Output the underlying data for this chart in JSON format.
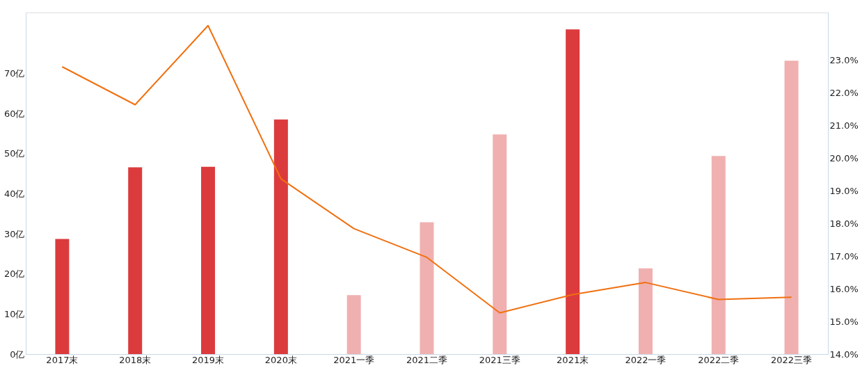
{
  "chart_data": {
    "type": "bar",
    "categories": [
      "2017末",
      "2018末",
      "2019末",
      "2020末",
      "2021一季",
      "2021二季",
      "2021三季",
      "2021末",
      "2022一季",
      "2022二季",
      "2022三季"
    ],
    "series": [
      {
        "values": [
          28.7,
          46.6,
          46.7,
          58.5,
          14.7,
          32.9,
          54.8,
          81.0,
          21.4,
          49.4,
          73.2
        ],
        "colors": [
          "#dc3b3d",
          "#dc3b3d",
          "#dc3b3d",
          "#dc3b3d",
          "#f0b0b0",
          "#f0b0b0",
          "#f0b0b0",
          "#dc3b3d",
          "#f0b0b0",
          "#f0b0b0",
          "#f0b0b0"
        ]
      },
      {
        "type": "line",
        "axis": "y2",
        "color": "#f07010",
        "values": [
          22.79,
          21.63,
          24.05,
          19.36,
          17.84,
          16.96,
          15.26,
          15.82,
          16.19,
          15.67,
          15.74
        ]
      }
    ],
    "ylim": [
      0,
      85.2
    ],
    "yticks": [
      {
        "value": 0,
        "label": "0亿"
      },
      {
        "value": 10,
        "label": "10亿"
      },
      {
        "value": 20,
        "label": "20亿"
      },
      {
        "value": 30,
        "label": "30亿"
      },
      {
        "value": 40,
        "label": "40亿"
      },
      {
        "value": 50,
        "label": "50亿"
      },
      {
        "value": 60,
        "label": "60亿"
      },
      {
        "value": 70,
        "label": "70亿"
      }
    ],
    "y2lim": [
      14,
      24.45
    ],
    "y2ticks": [
      {
        "value": 14,
        "label": "14.0%"
      },
      {
        "value": 15,
        "label": "15.0%"
      },
      {
        "value": 16,
        "label": "16.0%"
      },
      {
        "value": 17,
        "label": "17.0%"
      },
      {
        "value": 18,
        "label": "18.0%"
      },
      {
        "value": 19,
        "label": "19.0%"
      },
      {
        "value": 20,
        "label": "20.0%"
      },
      {
        "value": 21,
        "label": "21.0%"
      },
      {
        "value": 22,
        "label": "22.0%"
      },
      {
        "value": 23,
        "label": "23.0%"
      }
    ],
    "grid": false
  }
}
